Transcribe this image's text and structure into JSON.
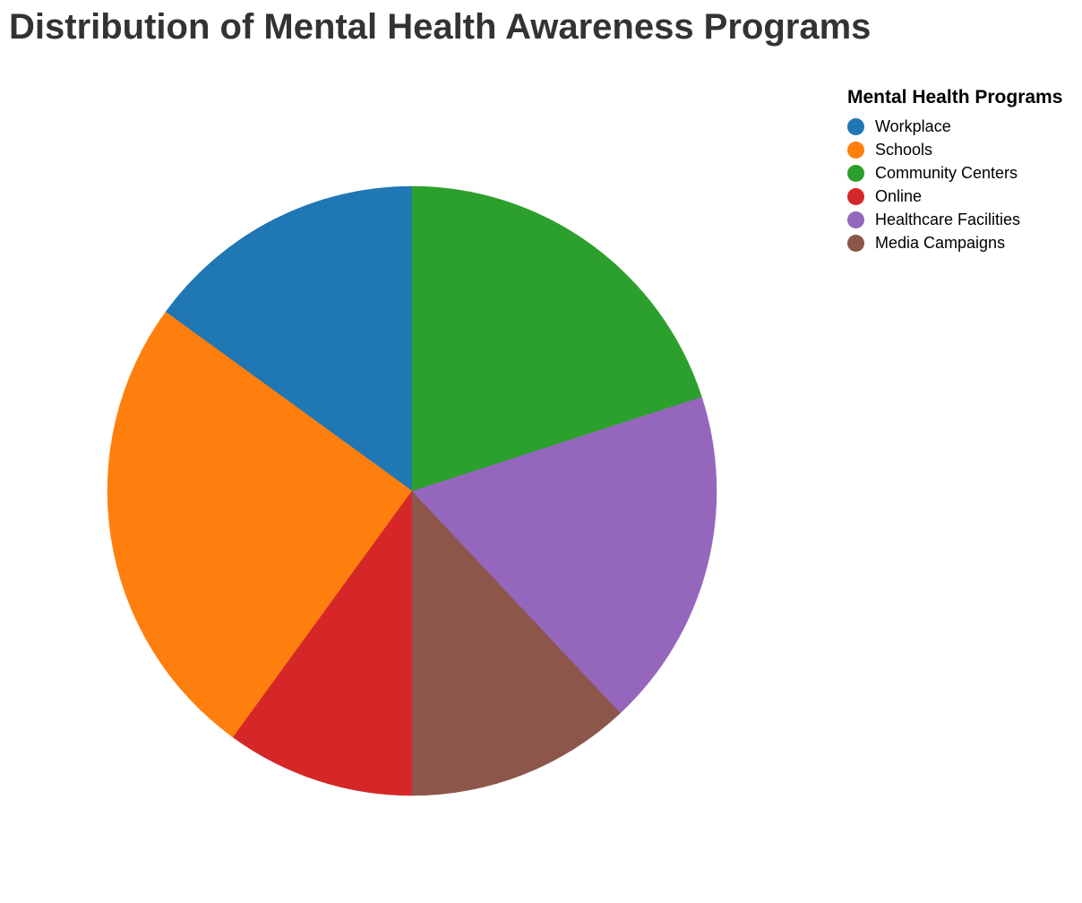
{
  "chart_data": {
    "type": "pie",
    "title": "Distribution of Mental Health Awareness Programs",
    "legend_title": "Mental Health Programs",
    "legend_position": "top-right",
    "start_angle_deg": 0,
    "direction": "counterclockwise",
    "slices": [
      {
        "label": "Workplace",
        "value": 15,
        "color": "#1f77b4"
      },
      {
        "label": "Schools",
        "value": 25,
        "color": "#ff7f0e"
      },
      {
        "label": "Online",
        "value": 10,
        "color": "#d62728"
      },
      {
        "label": "Media Campaigns",
        "value": 12,
        "color": "#8c564b"
      },
      {
        "label": "Healthcare Facilities",
        "value": 18,
        "color": "#9467bd"
      },
      {
        "label": "Community Centers",
        "value": 20,
        "color": "#2ca02c"
      }
    ],
    "legend_order": [
      "Workplace",
      "Schools",
      "Community Centers",
      "Online",
      "Healthcare Facilities",
      "Media Campaigns"
    ]
  }
}
